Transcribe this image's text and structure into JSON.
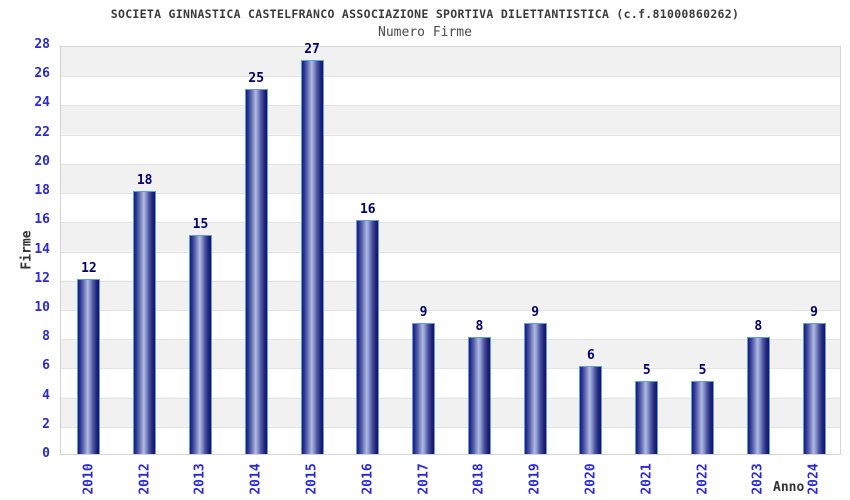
{
  "header": {
    "title": "SOCIETA GINNASTICA CASTELFRANCO ASSOCIAZIONE SPORTIVA DILETTANTISTICA (c.f.81000860262)",
    "subtitle": "Numero Firme"
  },
  "chart_data": {
    "type": "bar",
    "title": "Numero Firme",
    "categories": [
      "2010",
      "2012",
      "2013",
      "2014",
      "2015",
      "2016",
      "2017",
      "2018",
      "2019",
      "2020",
      "2021",
      "2022",
      "2023",
      "2024"
    ],
    "values": [
      12,
      18,
      15,
      25,
      27,
      16,
      9,
      8,
      9,
      6,
      5,
      5,
      8,
      9
    ],
    "xlabel": "Anno",
    "ylabel": "Firme",
    "ylim": [
      0,
      28
    ],
    "yticks": [
      0,
      2,
      4,
      6,
      8,
      10,
      12,
      14,
      16,
      18,
      20,
      22,
      24,
      26,
      28
    ],
    "grid": "horizontal-bands",
    "legend": "none"
  },
  "colors": {
    "tick_label": "#2a2ad4",
    "value_label": "#00006b",
    "bar_dark": "#1c1c7e",
    "bar_light": "#b0b9e0",
    "bar_border": "#5f9fdd",
    "band_gray": "#f1f1f1",
    "band_white": "#ffffff",
    "plot_border": "#d4d4d4",
    "title_text": "#3a3a3a"
  }
}
